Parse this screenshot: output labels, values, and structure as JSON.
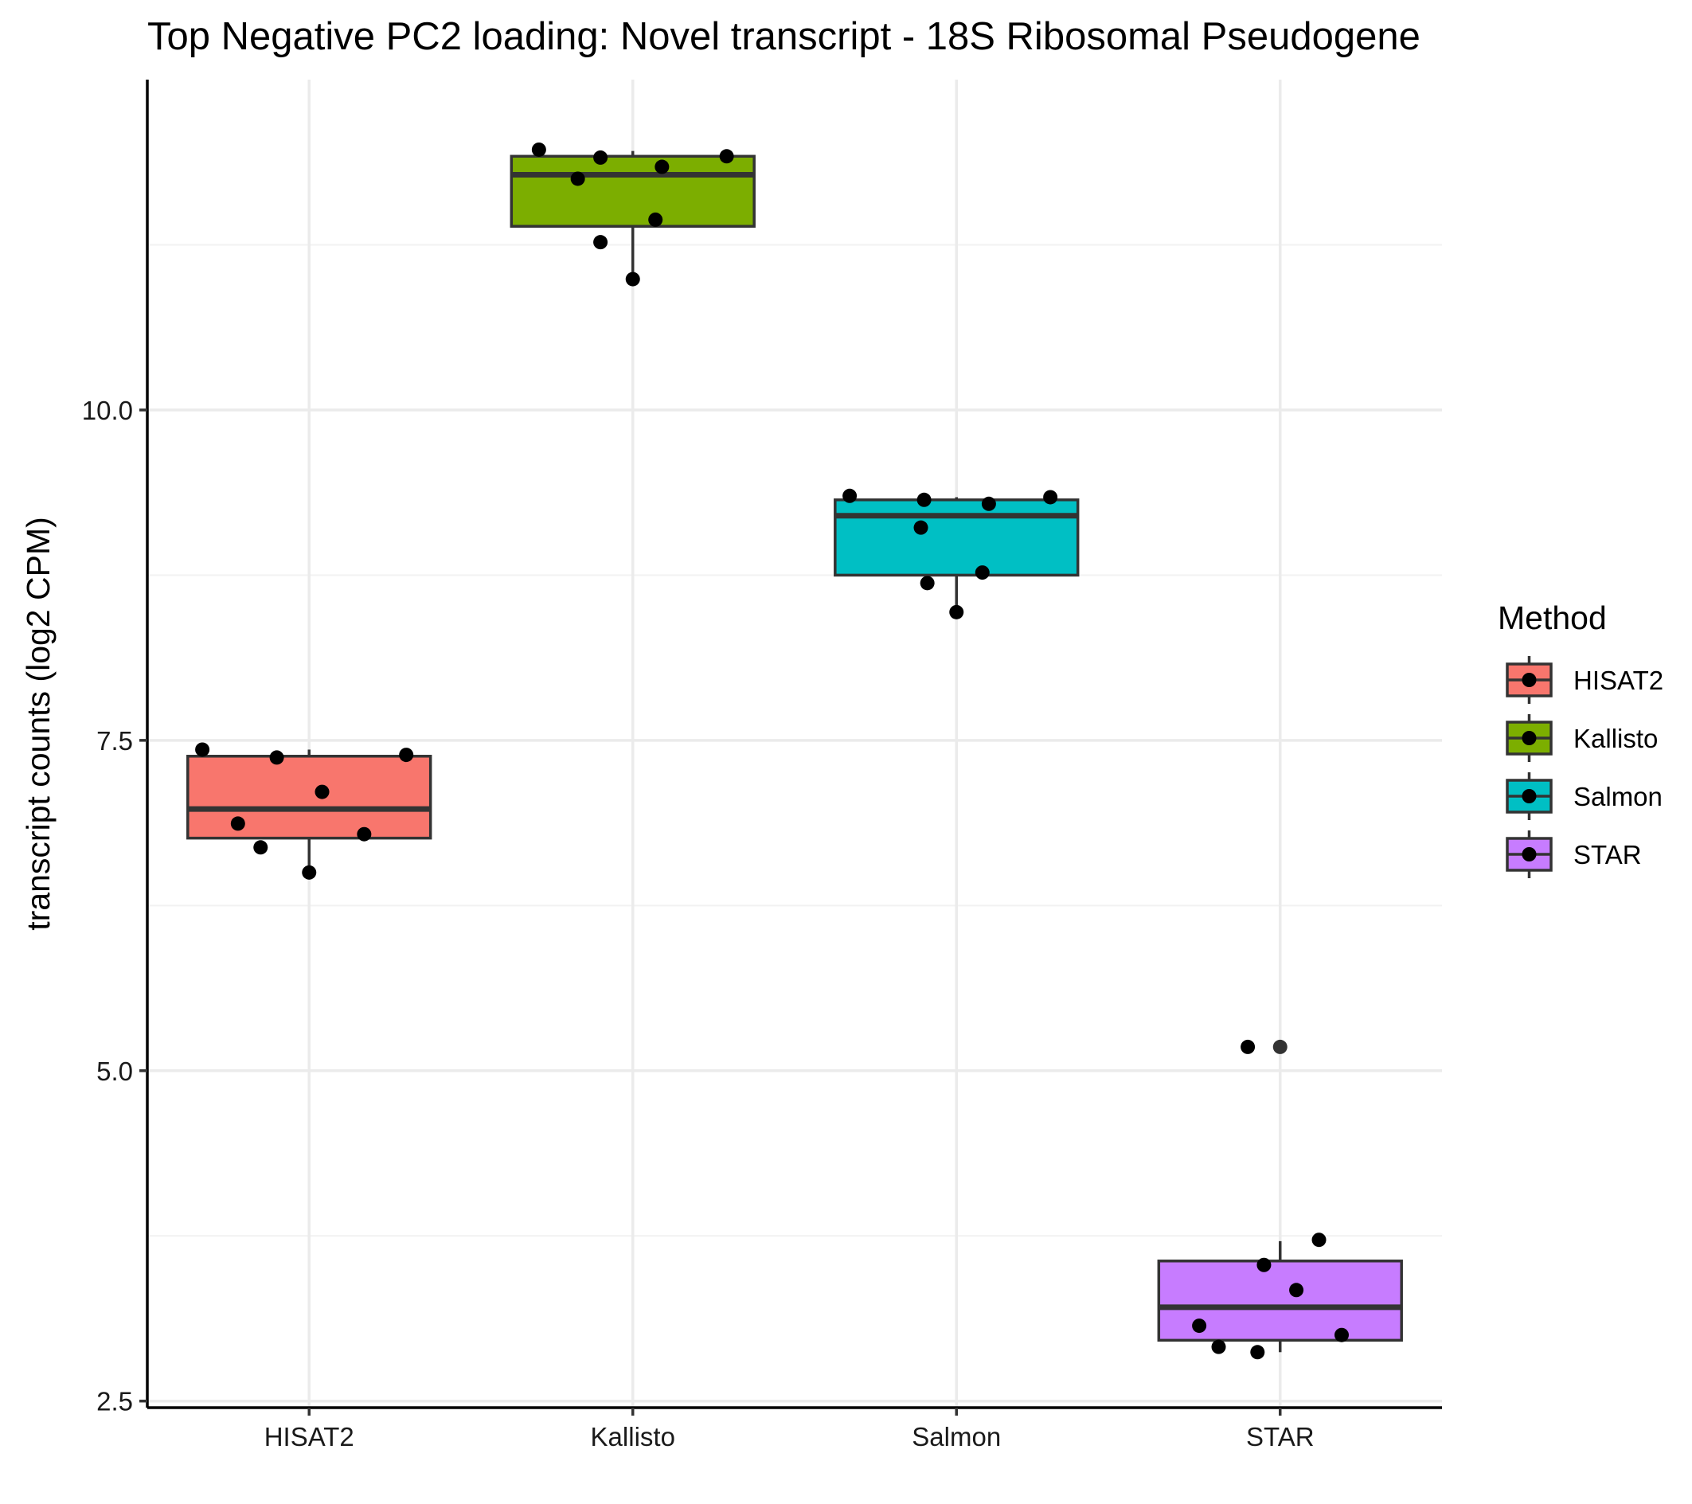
{
  "chart_data": {
    "type": "box",
    "title": "Top Negative PC2 loading: Novel transcript - 18S Ribosomal Pseudogene",
    "xlabel": "",
    "ylabel": "transcript counts (log2 CPM)",
    "categories": [
      "HISAT2",
      "Kallisto",
      "Salmon",
      "STAR"
    ],
    "y_ticks": [
      2.5,
      5.0,
      7.5,
      10.0
    ],
    "y_tick_labels": [
      "2.5",
      "5.0",
      "7.5",
      "10.0"
    ],
    "ylim": [
      2.45,
      12.5
    ],
    "grid": true,
    "legend": {
      "title": "Method",
      "placement": "right",
      "entries": [
        "HISAT2",
        "Kallisto",
        "Salmon",
        "STAR"
      ]
    },
    "series": [
      {
        "name": "HISAT2",
        "color": "#F8766D",
        "box": {
          "lower_whisker": 6.5,
          "q1": 6.76,
          "median": 6.98,
          "q3": 7.38,
          "upper_whisker": 7.43
        },
        "points": [
          {
            "jitter": -0.33,
            "value": 7.43
          },
          {
            "jitter": -0.22,
            "value": 6.87
          },
          {
            "jitter": -0.15,
            "value": 6.69
          },
          {
            "jitter": -0.1,
            "value": 7.37
          },
          {
            "jitter": 0.0,
            "value": 6.5
          },
          {
            "jitter": 0.04,
            "value": 7.11
          },
          {
            "jitter": 0.17,
            "value": 6.79
          },
          {
            "jitter": 0.3,
            "value": 7.39
          }
        ]
      },
      {
        "name": "Kallisto",
        "color": "#7CAE00",
        "box": {
          "lower_whisker": 10.99,
          "q1": 11.39,
          "median": 11.78,
          "q3": 11.92,
          "upper_whisker": 11.96
        },
        "points": [
          {
            "jitter": -0.29,
            "value": 11.97
          },
          {
            "jitter": -0.17,
            "value": 11.75
          },
          {
            "jitter": -0.1,
            "value": 11.27
          },
          {
            "jitter": -0.1,
            "value": 11.91
          },
          {
            "jitter": 0.0,
            "value": 10.99
          },
          {
            "jitter": 0.07,
            "value": 11.44
          },
          {
            "jitter": 0.09,
            "value": 11.84
          },
          {
            "jitter": 0.29,
            "value": 11.92
          }
        ]
      },
      {
        "name": "Salmon",
        "color": "#00BFC4",
        "box": {
          "lower_whisker": 8.47,
          "q1": 8.75,
          "median": 9.2,
          "q3": 9.32,
          "upper_whisker": 9.34
        },
        "points": [
          {
            "jitter": -0.33,
            "value": 9.35
          },
          {
            "jitter": -0.11,
            "value": 9.11
          },
          {
            "jitter": -0.1,
            "value": 9.32
          },
          {
            "jitter": -0.09,
            "value": 8.69
          },
          {
            "jitter": 0.0,
            "value": 8.47
          },
          {
            "jitter": 0.08,
            "value": 8.77
          },
          {
            "jitter": 0.1,
            "value": 9.29
          },
          {
            "jitter": 0.29,
            "value": 9.34
          }
        ]
      },
      {
        "name": "STAR",
        "color": "#C77CFF",
        "box": {
          "lower_whisker": 2.87,
          "q1": 2.96,
          "median": 3.21,
          "q3": 3.56,
          "upper_whisker": 3.71
        },
        "outliers": [
          5.18
        ],
        "points": [
          {
            "jitter": -0.25,
            "value": 3.07
          },
          {
            "jitter": -0.19,
            "value": 2.91
          },
          {
            "jitter": -0.1,
            "value": 5.18
          },
          {
            "jitter": -0.05,
            "value": 3.53
          },
          {
            "jitter": -0.07,
            "value": 2.87
          },
          {
            "jitter": 0.05,
            "value": 3.34
          },
          {
            "jitter": 0.12,
            "value": 3.72
          },
          {
            "jitter": 0.19,
            "value": 3.0
          }
        ]
      }
    ]
  }
}
